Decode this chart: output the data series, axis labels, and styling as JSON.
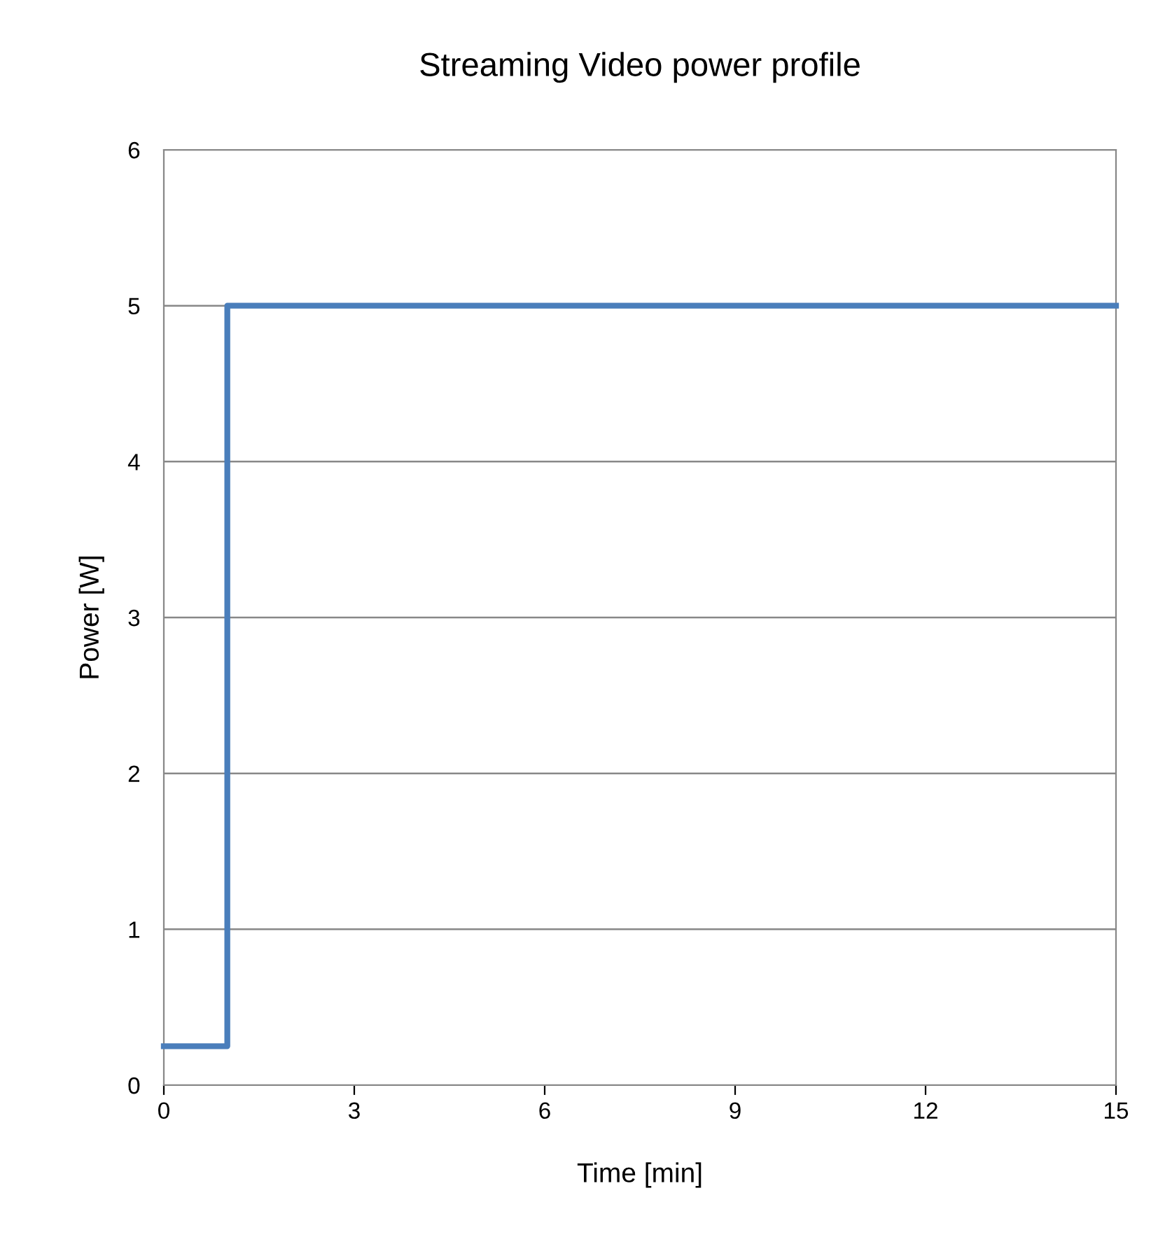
{
  "chart_data": {
    "type": "step",
    "title": "Streaming Video power profile",
    "xlabel": "Time [min]",
    "ylabel": "Power [W]",
    "x": [
      0,
      1,
      15
    ],
    "series": [
      {
        "color": "#4a7ebb",
        "values": [
          0.25,
          5,
          5
        ]
      }
    ],
    "xlim": [
      0,
      15
    ],
    "xticks": [
      0,
      3,
      6,
      9,
      12,
      15
    ],
    "ylim": [
      0,
      6
    ],
    "yticks": [
      0,
      1,
      2,
      3,
      4,
      5,
      6
    ],
    "grid": "y",
    "marker": "none",
    "line_style": "solid"
  }
}
